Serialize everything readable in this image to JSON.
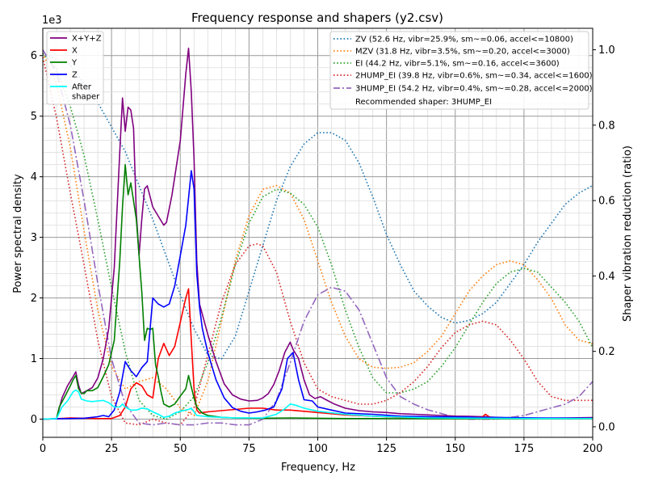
{
  "chart_data": {
    "type": "line",
    "title": "Frequency response and shapers (y2.csv)",
    "xlabel": "Frequency, Hz",
    "ylabel": "Power spectral density",
    "y2label": "Shaper vibration reduction (ratio)",
    "y_multiplier_label": "1e3",
    "xlim": [
      0,
      200
    ],
    "ylim": [
      -300,
      6450
    ],
    "y2lim": [
      -0.028,
      1.057
    ],
    "grid": true,
    "x_ticks": [
      "0",
      "25",
      "50",
      "75",
      "100",
      "125",
      "150",
      "175",
      "200"
    ],
    "y_ticks": [
      "0",
      "1",
      "2",
      "3",
      "4",
      "5",
      "6"
    ],
    "y2_ticks": [
      "0.0",
      "0.2",
      "0.4",
      "0.6",
      "0.8",
      "1.0"
    ],
    "psd_legend_position": "top-left",
    "shaper_legend_position": "top-right",
    "recommended_text": "Recommended shaper: 3HUMP_EI",
    "psd_series": [
      {
        "name": "X+Y+Z",
        "color": "#800080",
        "x": [
          0,
          5,
          7,
          9,
          11,
          12,
          13,
          14,
          16,
          18,
          20,
          22,
          24,
          26,
          28,
          29,
          30,
          31,
          32,
          33,
          34,
          35,
          36,
          37,
          38,
          40,
          42,
          44,
          45,
          47,
          50,
          52,
          53,
          54,
          55,
          56,
          57,
          60,
          63,
          66,
          69,
          72,
          75,
          78,
          80,
          82,
          84,
          86,
          88,
          90,
          91,
          93,
          95,
          97,
          99,
          101,
          103,
          106,
          110,
          115,
          120,
          125,
          130,
          135,
          140,
          145,
          150,
          155,
          160,
          165,
          170,
          180,
          190,
          200
        ],
        "y": [
          0,
          5,
          350,
          550,
          700,
          780,
          560,
          420,
          470,
          520,
          680,
          1000,
          1500,
          2500,
          4400,
          5300,
          4750,
          5150,
          5100,
          4800,
          3400,
          2700,
          3300,
          3800,
          3850,
          3500,
          3350,
          3200,
          3250,
          3700,
          4600,
          5700,
          6120,
          5400,
          4300,
          2600,
          1900,
          1400,
          950,
          580,
          400,
          330,
          300,
          310,
          350,
          420,
          570,
          800,
          1100,
          1270,
          1150,
          1000,
          650,
          400,
          340,
          370,
          320,
          250,
          180,
          140,
          120,
          110,
          90,
          80,
          70,
          60,
          50,
          45,
          40,
          30,
          20,
          15,
          20,
          25
        ]
      },
      {
        "name": "X",
        "color": "#ff0000",
        "x": [
          0,
          5,
          10,
          15,
          20,
          25,
          28,
          30,
          32,
          34,
          36,
          38,
          40,
          42,
          44,
          46,
          48,
          50,
          52,
          53,
          54,
          55,
          56,
          57,
          58,
          60,
          65,
          70,
          75,
          80,
          85,
          90,
          95,
          100,
          105,
          110,
          120,
          130,
          140,
          150,
          160,
          161,
          162,
          163,
          170,
          180,
          190,
          200
        ],
        "y": [
          0,
          5,
          20,
          15,
          10,
          10,
          60,
          200,
          500,
          600,
          550,
          400,
          350,
          1000,
          1250,
          1050,
          1200,
          1600,
          2000,
          2150,
          1300,
          500,
          150,
          100,
          110,
          120,
          140,
          160,
          180,
          180,
          150,
          150,
          130,
          110,
          90,
          70,
          50,
          30,
          20,
          20,
          40,
          80,
          50,
          20,
          15,
          10,
          5,
          5
        ]
      },
      {
        "name": "Y",
        "color": "#008000",
        "x": [
          0,
          5,
          6,
          8,
          10,
          11,
          12,
          13,
          14,
          15,
          16,
          18,
          20,
          22,
          24,
          26,
          28,
          29,
          30,
          31,
          32,
          33,
          34,
          35,
          36,
          37,
          38,
          39,
          40,
          41,
          42,
          43,
          44,
          46,
          48,
          50,
          52,
          53,
          54,
          55,
          56,
          58,
          60,
          65,
          70,
          80,
          90,
          100,
          110,
          120,
          140,
          160,
          180,
          200
        ],
        "y": [
          0,
          5,
          200,
          370,
          550,
          650,
          720,
          500,
          430,
          420,
          470,
          470,
          520,
          700,
          900,
          1300,
          2600,
          3500,
          4200,
          3700,
          3900,
          3600,
          3300,
          2700,
          2100,
          1300,
          1500,
          1480,
          1500,
          900,
          700,
          450,
          250,
          200,
          250,
          380,
          500,
          720,
          530,
          350,
          200,
          100,
          60,
          30,
          20,
          15,
          20,
          15,
          10,
          10,
          5,
          5,
          5,
          5
        ]
      },
      {
        "name": "Z",
        "color": "#0000ff",
        "x": [
          0,
          5,
          10,
          15,
          20,
          22,
          24,
          26,
          28,
          30,
          32,
          34,
          36,
          38,
          40,
          42,
          44,
          46,
          48,
          50,
          52,
          54,
          55,
          56,
          57,
          58,
          60,
          63,
          66,
          69,
          72,
          75,
          78,
          81,
          84,
          87,
          89,
          91,
          93,
          95,
          98,
          100,
          105,
          110,
          120,
          130,
          140,
          160,
          180,
          200
        ],
        "y": [
          0,
          5,
          10,
          15,
          40,
          60,
          40,
          150,
          450,
          950,
          800,
          700,
          850,
          950,
          2000,
          1900,
          1850,
          1900,
          2200,
          2700,
          3200,
          4100,
          3800,
          2400,
          1850,
          1500,
          1100,
          650,
          350,
          190,
          130,
          100,
          120,
          150,
          200,
          500,
          1000,
          1100,
          650,
          320,
          300,
          200,
          150,
          100,
          80,
          50,
          40,
          30,
          20,
          15
        ]
      },
      {
        "name": "After\nshaper",
        "color": "#00ffff",
        "x": [
          0,
          5,
          7,
          9,
          11,
          12,
          13,
          14,
          16,
          18,
          20,
          22,
          24,
          26,
          28,
          29,
          30,
          32,
          34,
          36,
          38,
          40,
          42,
          44,
          46,
          48,
          50,
          52,
          53,
          54,
          55,
          56,
          60,
          65,
          70,
          80,
          85,
          88,
          90,
          92,
          95,
          100,
          110,
          120,
          140,
          160,
          180,
          200
        ],
        "y": [
          0,
          10,
          200,
          300,
          450,
          480,
          450,
          330,
          300,
          290,
          300,
          310,
          270,
          200,
          200,
          250,
          200,
          150,
          150,
          180,
          170,
          120,
          80,
          30,
          50,
          100,
          130,
          150,
          160,
          180,
          120,
          60,
          40,
          30,
          20,
          20,
          80,
          170,
          250,
          230,
          180,
          130,
          80,
          50,
          20,
          15,
          10,
          10
        ]
      }
    ],
    "shaper_series": [
      {
        "name": "ZV (52.6 Hz, vibr=25.9%, sm~=0.06, accel<=10800)",
        "color": "#1f77b4",
        "style": "dotted",
        "x": [
          0,
          10,
          20,
          30,
          40,
          50,
          55,
          60,
          65,
          70,
          75,
          80,
          85,
          90,
          95,
          100,
          105,
          110,
          115,
          120,
          125,
          130,
          135,
          140,
          145,
          150,
          155,
          160,
          165,
          170,
          175,
          180,
          185,
          190,
          195,
          200
        ],
        "y": [
          0.99,
          0.96,
          0.86,
          0.73,
          0.55,
          0.35,
          0.26,
          0.19,
          0.18,
          0.24,
          0.36,
          0.48,
          0.6,
          0.69,
          0.75,
          0.78,
          0.78,
          0.76,
          0.7,
          0.61,
          0.51,
          0.43,
          0.36,
          0.32,
          0.29,
          0.275,
          0.282,
          0.3,
          0.33,
          0.38,
          0.43,
          0.49,
          0.54,
          0.59,
          0.62,
          0.64
        ]
      },
      {
        "name": "MZV (31.8 Hz, vibr=3.5%, sm~=0.20, accel<=3000)",
        "color": "#ff7f0e",
        "style": "dotted",
        "x": [
          0,
          5,
          10,
          15,
          20,
          25,
          30,
          35,
          40,
          45,
          50,
          55,
          60,
          65,
          70,
          75,
          80,
          85,
          90,
          95,
          100,
          105,
          110,
          115,
          120,
          125,
          130,
          135,
          140,
          145,
          150,
          155,
          160,
          165,
          170,
          175,
          180,
          185,
          190,
          195,
          200
        ],
        "y": [
          0.99,
          0.91,
          0.74,
          0.52,
          0.31,
          0.16,
          0.1,
          0.12,
          0.13,
          0.1,
          0.05,
          0.03,
          0.12,
          0.28,
          0.44,
          0.56,
          0.63,
          0.64,
          0.62,
          0.55,
          0.44,
          0.33,
          0.24,
          0.18,
          0.158,
          0.155,
          0.158,
          0.17,
          0.2,
          0.24,
          0.3,
          0.36,
          0.4,
          0.43,
          0.44,
          0.43,
          0.39,
          0.34,
          0.27,
          0.23,
          0.22
        ]
      },
      {
        "name": "EI (44.2 Hz, vibr=5.1%, sm~=0.16, accel<=3600)",
        "color": "#2ca02c",
        "style": "dotted",
        "x": [
          0,
          5,
          10,
          15,
          20,
          25,
          30,
          35,
          40,
          45,
          50,
          55,
          60,
          65,
          70,
          75,
          80,
          85,
          90,
          95,
          100,
          105,
          110,
          115,
          120,
          125,
          130,
          135,
          140,
          145,
          150,
          155,
          160,
          165,
          170,
          175,
          180,
          185,
          190,
          195,
          200
        ],
        "y": [
          0.99,
          0.95,
          0.85,
          0.72,
          0.55,
          0.37,
          0.2,
          0.07,
          0.03,
          0.02,
          0.04,
          0.08,
          0.17,
          0.29,
          0.43,
          0.54,
          0.61,
          0.63,
          0.62,
          0.59,
          0.53,
          0.43,
          0.31,
          0.21,
          0.13,
          0.09,
          0.09,
          0.1,
          0.12,
          0.16,
          0.21,
          0.27,
          0.33,
          0.38,
          0.41,
          0.42,
          0.41,
          0.37,
          0.33,
          0.28,
          0.21
        ]
      },
      {
        "name": "2HUMP_EI (39.8 Hz, vibr=0.6%, sm~=0.34, accel<=1600)",
        "color": "#d62728",
        "style": "dotted",
        "x": [
          0,
          5,
          10,
          15,
          20,
          25,
          30,
          35,
          40,
          45,
          50,
          55,
          60,
          65,
          70,
          75,
          78,
          80,
          85,
          90,
          95,
          100,
          105,
          110,
          115,
          120,
          125,
          130,
          135,
          140,
          145,
          150,
          155,
          160,
          165,
          170,
          175,
          180,
          185,
          190,
          195,
          200
        ],
        "y": [
          0.98,
          0.82,
          0.62,
          0.43,
          0.23,
          0.08,
          0.01,
          0.005,
          0.02,
          0.01,
          0.005,
          0.05,
          0.19,
          0.33,
          0.43,
          0.48,
          0.485,
          0.48,
          0.41,
          0.28,
          0.17,
          0.1,
          0.08,
          0.07,
          0.06,
          0.06,
          0.07,
          0.09,
          0.12,
          0.16,
          0.21,
          0.25,
          0.27,
          0.28,
          0.27,
          0.23,
          0.18,
          0.12,
          0.08,
          0.07,
          0.07,
          0.07
        ]
      },
      {
        "name": "3HUMP_EI (54.2 Hz, vibr=0.4%, sm~=0.28, accel<=2000)",
        "color": "#9467bd",
        "style": "dashdot",
        "x": [
          0,
          5,
          10,
          15,
          20,
          25,
          30,
          35,
          40,
          45,
          50,
          55,
          60,
          65,
          70,
          75,
          80,
          85,
          90,
          95,
          100,
          105,
          110,
          115,
          120,
          125,
          130,
          135,
          140,
          145,
          150,
          155,
          160,
          165,
          170,
          175,
          180,
          185,
          190,
          195,
          200
        ],
        "y": [
          1.0,
          0.94,
          0.8,
          0.6,
          0.38,
          0.18,
          0.06,
          0.01,
          0.005,
          0.01,
          0.005,
          0.005,
          0.01,
          0.01,
          0.005,
          0.005,
          0.02,
          0.07,
          0.17,
          0.28,
          0.35,
          0.37,
          0.36,
          0.31,
          0.22,
          0.13,
          0.08,
          0.06,
          0.045,
          0.035,
          0.025,
          0.02,
          0.02,
          0.02,
          0.025,
          0.03,
          0.04,
          0.05,
          0.06,
          0.08,
          0.12
        ]
      }
    ]
  }
}
